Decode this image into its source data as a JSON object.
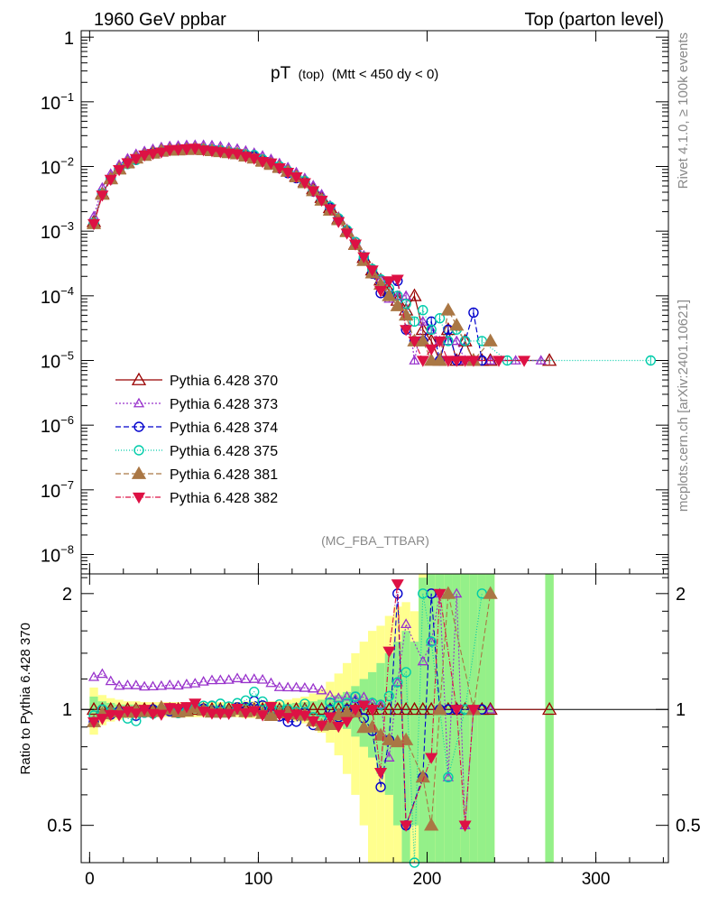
{
  "header": {
    "left": "1960 GeV ppbar",
    "right": "Top (parton level)"
  },
  "side": {
    "upper": "Rivet 4.1.0, ≥ 100k events",
    "lower": "mcplots.cern.ch [arXiv:2401.10621]"
  },
  "chart_data": {
    "type": "line",
    "title_main": "pT",
    "title_sub1": "(top)",
    "title_sub2": "(Mtt < 450 dy < 0)",
    "watermark": "(MC_FBA_TTBAR)",
    "xlim": [
      -5,
      343
    ],
    "x_ticks": [
      0,
      100,
      200,
      300
    ],
    "x_tick_labels": [
      "0",
      "100",
      "200",
      "300"
    ],
    "main_ylim_log10": [
      -8.3,
      0.1
    ],
    "main_y_tick_labels": [
      "1",
      "10^-1",
      "10^-2",
      "10^-3",
      "10^-4",
      "10^-5",
      "10^-6",
      "10^-7",
      "10^-8"
    ],
    "ratio_ylabel": "Ratio to Pythia 6.428 370",
    "ratio_ylim": [
      0.4,
      2.25
    ],
    "ratio_y_tick_labels": [
      "0.5",
      "1",
      "2"
    ],
    "ref_x": [
      2.5,
      7.5,
      12.5,
      17.5,
      22.5,
      27.5,
      32.5,
      37.5,
      42.5,
      47.5,
      52.5,
      57.5,
      62.5,
      67.5,
      72.5,
      77.5,
      82.5,
      87.5,
      92.5,
      97.5,
      102.5,
      107.5,
      112.5,
      117.5,
      122.5,
      127.5,
      132.5,
      137.5,
      142.5,
      147.5,
      152.5,
      157.5,
      162.5,
      167.5,
      172.5,
      177.5,
      182.5,
      187.5,
      192.5,
      197.5,
      202.5,
      207.5,
      212.5,
      217.5,
      222.5,
      227.5,
      232.5,
      237.5,
      272.5
    ],
    "ref_y": [
      0.0014,
      0.0038,
      0.0065,
      0.0092,
      0.0115,
      0.0135,
      0.015,
      0.0162,
      0.0172,
      0.0178,
      0.0182,
      0.0184,
      0.0184,
      0.0182,
      0.0178,
      0.0172,
      0.0165,
      0.0156,
      0.0146,
      0.0135,
      0.0123,
      0.0111,
      0.0098,
      0.0085,
      0.0071,
      0.0058,
      0.0045,
      0.0033,
      0.0023,
      0.00155,
      0.001,
      0.00063,
      0.00039,
      0.00025,
      0.000175,
      0.00012,
      8.5e-05,
      6e-05,
      0.0001,
      3e-05,
      2e-05,
      1e-05,
      3e-05,
      1e-05,
      2e-05,
      1e-05,
      1e-05,
      1e-05,
      1e-05
    ],
    "band_stat": [
      0.08,
      0.05,
      0.04,
      0.03,
      0.03,
      0.03,
      0.025,
      0.025,
      0.025,
      0.025,
      0.025,
      0.025,
      0.025,
      0.025,
      0.025,
      0.025,
      0.025,
      0.025,
      0.03,
      0.03,
      0.03,
      0.03,
      0.03,
      0.035,
      0.04,
      0.045,
      0.05,
      0.06,
      0.07,
      0.09,
      0.11,
      0.15,
      0.2,
      0.25,
      0.32,
      0.4,
      0.5,
      0.6,
      0.5,
      1.2,
      1.5,
      2.0,
      1.5,
      2.0,
      2.0,
      2.0,
      2.0,
      2.0,
      2.0
    ],
    "band_total": [
      0.14,
      0.09,
      0.07,
      0.06,
      0.05,
      0.05,
      0.045,
      0.045,
      0.045,
      0.045,
      0.045,
      0.045,
      0.045,
      0.045,
      0.045,
      0.045,
      0.045,
      0.045,
      0.05,
      0.05,
      0.05,
      0.05,
      0.05,
      0.06,
      0.07,
      0.08,
      0.1,
      0.13,
      0.18,
      0.24,
      0.32,
      0.4,
      0.5,
      0.6,
      0.65,
      0.75,
      0.85,
      0.9,
      0.8,
      1.5,
      1.8,
      2.2,
      1.8,
      2.3,
      2.3,
      2.3,
      2.3,
      2.3,
      2.3
    ],
    "series": [
      {
        "name": "Pythia 6.428 370",
        "color": "#990000",
        "marker": "tri-up-open",
        "dash": "",
        "x": [
          2.5,
          7.5,
          12.5,
          17.5,
          22.5,
          27.5,
          32.5,
          37.5,
          42.5,
          47.5,
          52.5,
          57.5,
          62.5,
          67.5,
          72.5,
          77.5,
          82.5,
          87.5,
          92.5,
          97.5,
          102.5,
          107.5,
          112.5,
          117.5,
          122.5,
          127.5,
          132.5,
          137.5,
          142.5,
          147.5,
          152.5,
          157.5,
          162.5,
          167.5,
          172.5,
          177.5,
          182.5,
          187.5,
          192.5,
          197.5,
          202.5,
          207.5,
          212.5,
          217.5,
          222.5,
          227.5,
          232.5,
          237.5,
          272.5
        ],
        "y": [
          0.0014,
          0.0038,
          0.0065,
          0.0092,
          0.0115,
          0.0135,
          0.015,
          0.0162,
          0.0172,
          0.0178,
          0.0182,
          0.0184,
          0.0184,
          0.0182,
          0.0178,
          0.0172,
          0.0165,
          0.0156,
          0.0146,
          0.0135,
          0.0123,
          0.0111,
          0.0098,
          0.0085,
          0.0071,
          0.0058,
          0.0045,
          0.0033,
          0.0023,
          0.00155,
          0.001,
          0.00063,
          0.00039,
          0.00025,
          0.000175,
          0.00012,
          8.5e-05,
          6e-05,
          0.0001,
          3e-05,
          2e-05,
          1e-05,
          3e-05,
          1e-05,
          2e-05,
          1e-05,
          1e-05,
          1e-05,
          1e-05
        ]
      },
      {
        "name": "Pythia 6.428 373",
        "color": "#9933cc",
        "marker": "tri-up-open-small",
        "dash": "2,2",
        "x": [
          2.5,
          7.5,
          12.5,
          17.5,
          22.5,
          27.5,
          32.5,
          37.5,
          42.5,
          47.5,
          52.5,
          57.5,
          62.5,
          67.5,
          72.5,
          77.5,
          82.5,
          87.5,
          92.5,
          97.5,
          102.5,
          107.5,
          112.5,
          117.5,
          122.5,
          127.5,
          132.5,
          137.5,
          142.5,
          147.5,
          152.5,
          157.5,
          162.5,
          167.5,
          172.5,
          177.5,
          182.5,
          187.5,
          192.5,
          197.5,
          202.5,
          207.5,
          212.5,
          217.5,
          222.5,
          227.5,
          237.5,
          252.5,
          267.5
        ],
        "y": [
          0.0017,
          0.0047,
          0.0077,
          0.0106,
          0.0133,
          0.0156,
          0.0172,
          0.0186,
          0.0198,
          0.0206,
          0.021,
          0.0214,
          0.0215,
          0.0215,
          0.0212,
          0.0205,
          0.0197,
          0.0188,
          0.0175,
          0.0162,
          0.0147,
          0.013,
          0.0112,
          0.0097,
          0.0081,
          0.0066,
          0.0051,
          0.0037,
          0.0025,
          0.00166,
          0.00108,
          0.00067,
          0.00042,
          0.00026,
          0.00018,
          9e-05,
          0.0001,
          0.0001,
          1e-05,
          4e-05,
          3e-05,
          2e-05,
          2e-05,
          2e-05,
          1e-05,
          1e-05,
          1e-05,
          1e-05,
          1e-05
        ]
      },
      {
        "name": "Pythia 6.428 374",
        "color": "#0000cc",
        "marker": "circle-open",
        "dash": "6,3",
        "x": [
          2.5,
          7.5,
          12.5,
          17.5,
          22.5,
          27.5,
          32.5,
          37.5,
          42.5,
          47.5,
          52.5,
          57.5,
          62.5,
          67.5,
          72.5,
          77.5,
          82.5,
          87.5,
          92.5,
          97.5,
          102.5,
          107.5,
          112.5,
          117.5,
          122.5,
          127.5,
          132.5,
          137.5,
          142.5,
          147.5,
          152.5,
          157.5,
          162.5,
          167.5,
          172.5,
          177.5,
          182.5,
          187.5,
          192.5,
          197.5,
          202.5,
          207.5,
          212.5,
          217.5,
          222.5,
          227.5,
          232.5
        ],
        "y": [
          0.0013,
          0.0038,
          0.0063,
          0.0091,
          0.0113,
          0.013,
          0.0149,
          0.0162,
          0.017,
          0.0176,
          0.0182,
          0.0186,
          0.0188,
          0.0183,
          0.0182,
          0.0171,
          0.0162,
          0.0158,
          0.0148,
          0.0142,
          0.0126,
          0.0108,
          0.0094,
          0.0079,
          0.0066,
          0.0057,
          0.0041,
          0.003,
          0.0023,
          0.00148,
          0.001,
          0.00068,
          0.00037,
          0.00022,
          0.00011,
          0.0001,
          0.00017,
          3e-05,
          2e-05,
          2e-05,
          4e-05,
          1e-05,
          3e-05,
          1e-05,
          2e-05,
          5.5e-05,
          1e-05
        ]
      },
      {
        "name": "Pythia 6.428 375",
        "color": "#00ccaa",
        "marker": "circle-open",
        "dash": "1,2",
        "x": [
          2.5,
          7.5,
          12.5,
          17.5,
          22.5,
          27.5,
          32.5,
          37.5,
          42.5,
          47.5,
          52.5,
          57.5,
          62.5,
          67.5,
          72.5,
          77.5,
          82.5,
          87.5,
          92.5,
          97.5,
          102.5,
          107.5,
          112.5,
          117.5,
          122.5,
          127.5,
          132.5,
          137.5,
          142.5,
          147.5,
          152.5,
          157.5,
          162.5,
          167.5,
          172.5,
          177.5,
          182.5,
          187.5,
          192.5,
          197.5,
          202.5,
          207.5,
          212.5,
          217.5,
          222.5,
          232.5,
          247.5,
          332.5
        ],
        "y": [
          0.00135,
          0.0038,
          0.0064,
          0.009,
          0.0109,
          0.0126,
          0.0147,
          0.0158,
          0.0172,
          0.0178,
          0.0178,
          0.0182,
          0.0186,
          0.0186,
          0.0182,
          0.0178,
          0.0168,
          0.0162,
          0.0154,
          0.015,
          0.0129,
          0.0111,
          0.0101,
          0.0085,
          0.007,
          0.006,
          0.0043,
          0.0031,
          0.0024,
          0.00158,
          0.00104,
          0.00068,
          0.0004,
          0.00026,
          0.00018,
          0.00013,
          0.0001,
          7.5e-05,
          4e-05,
          6e-05,
          3e-05,
          4.5e-05,
          2e-05,
          3e-05,
          2e-05,
          2e-05,
          1e-05,
          1e-05
        ]
      },
      {
        "name": "Pythia 6.428 381",
        "color": "#aa7744",
        "marker": "tri-up-filled",
        "dash": "6,3",
        "x": [
          2.5,
          7.5,
          12.5,
          17.5,
          22.5,
          27.5,
          32.5,
          37.5,
          42.5,
          47.5,
          52.5,
          57.5,
          62.5,
          67.5,
          72.5,
          77.5,
          82.5,
          87.5,
          92.5,
          97.5,
          102.5,
          107.5,
          112.5,
          117.5,
          122.5,
          127.5,
          132.5,
          137.5,
          142.5,
          147.5,
          152.5,
          157.5,
          162.5,
          167.5,
          172.5,
          177.5,
          182.5,
          187.5,
          192.5,
          197.5,
          202.5,
          207.5,
          212.5,
          217.5,
          227.5,
          237.5
        ],
        "y": [
          0.0013,
          0.0037,
          0.0064,
          0.0091,
          0.0113,
          0.0134,
          0.0148,
          0.016,
          0.0174,
          0.0178,
          0.0179,
          0.0182,
          0.0186,
          0.0181,
          0.0175,
          0.0169,
          0.0163,
          0.0156,
          0.0144,
          0.0134,
          0.012,
          0.0107,
          0.0096,
          0.0084,
          0.0069,
          0.0056,
          0.0042,
          0.003,
          0.0021,
          0.0015,
          0.00098,
          0.00062,
          0.00035,
          0.000225,
          0.00015,
          0.0001,
          7e-05,
          5e-05,
          2e-05,
          2e-05,
          1e-05,
          1e-05,
          6e-05,
          3.5e-05,
          1e-05,
          2e-05
        ]
      },
      {
        "name": "Pythia 6.428 382",
        "color": "#dd1144",
        "marker": "tri-down-filled",
        "dash": "6,2,1,2",
        "x": [
          2.5,
          7.5,
          12.5,
          17.5,
          22.5,
          27.5,
          32.5,
          37.5,
          42.5,
          47.5,
          52.5,
          57.5,
          62.5,
          67.5,
          72.5,
          77.5,
          82.5,
          87.5,
          92.5,
          97.5,
          102.5,
          107.5,
          112.5,
          117.5,
          122.5,
          127.5,
          132.5,
          137.5,
          142.5,
          147.5,
          152.5,
          157.5,
          162.5,
          167.5,
          172.5,
          177.5,
          182.5,
          187.5,
          192.5,
          197.5,
          202.5,
          207.5,
          212.5,
          217.5,
          222.5,
          227.5,
          242.5,
          257.5
        ],
        "y": [
          0.0013,
          0.0036,
          0.0063,
          0.0089,
          0.0114,
          0.0132,
          0.015,
          0.0158,
          0.0167,
          0.018,
          0.0183,
          0.0187,
          0.0191,
          0.018,
          0.0174,
          0.0168,
          0.0161,
          0.0157,
          0.0143,
          0.0134,
          0.0119,
          0.0113,
          0.0095,
          0.0081,
          0.0069,
          0.0056,
          0.0042,
          0.003,
          0.0022,
          0.0014,
          0.00093,
          0.00063,
          0.0004,
          0.00025,
          0.00012,
          0.00017,
          0.00018,
          3e-05,
          2e-05,
          1e-05,
          1.5e-05,
          2e-05,
          1e-05,
          1e-05,
          1e-05,
          1e-05,
          1e-05,
          1e-05
        ]
      }
    ]
  }
}
